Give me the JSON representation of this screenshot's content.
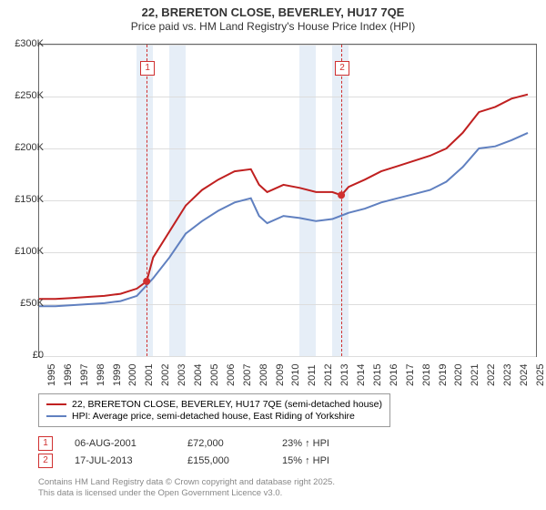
{
  "title_line1": "22, BRERETON CLOSE, BEVERLEY, HU17 7QE",
  "title_line2": "Price paid vs. HM Land Registry's House Price Index (HPI)",
  "chart": {
    "type": "line",
    "background_color": "#ffffff",
    "grid_color": "#dddddd",
    "axis_color": "#666666",
    "shade_color": "#e6eef7",
    "xlim": [
      1995,
      2025.5
    ],
    "ylim": [
      0,
      300000
    ],
    "ytick_step": 50000,
    "y_ticks": [
      "£0",
      "£50K",
      "£100K",
      "£150K",
      "£200K",
      "£250K",
      "£300K"
    ],
    "x_ticks": [
      1995,
      1996,
      1997,
      1998,
      1999,
      2000,
      2001,
      2002,
      2003,
      2004,
      2005,
      2006,
      2007,
      2008,
      2009,
      2010,
      2011,
      2012,
      2013,
      2014,
      2015,
      2016,
      2017,
      2018,
      2019,
      2020,
      2021,
      2022,
      2023,
      2024,
      2025
    ],
    "shade_bands": [
      [
        2001,
        2002
      ],
      [
        2003,
        2004
      ],
      [
        2011,
        2012
      ],
      [
        2013,
        2014
      ]
    ],
    "series": [
      {
        "name": "price_paid",
        "label": "22, BRERETON CLOSE, BEVERLEY, HU17 7QE (semi-detached house)",
        "color": "#c02020",
        "width": 2,
        "x": [
          1995,
          1996,
          1997,
          1998,
          1999,
          2000,
          2001,
          2001.6,
          2002,
          2003,
          2004,
          2005,
          2006,
          2007,
          2008,
          2008.5,
          2009,
          2010,
          2011,
          2012,
          2013,
          2013.55,
          2014,
          2015,
          2016,
          2017,
          2018,
          2019,
          2020,
          2021,
          2022,
          2023,
          2024,
          2025
        ],
        "y": [
          55000,
          55000,
          56000,
          57000,
          58000,
          60000,
          65000,
          72000,
          95000,
          120000,
          145000,
          160000,
          170000,
          178000,
          180000,
          165000,
          158000,
          165000,
          162000,
          158000,
          158000,
          155000,
          163000,
          170000,
          178000,
          183000,
          188000,
          193000,
          200000,
          215000,
          235000,
          240000,
          248000,
          252000
        ]
      },
      {
        "name": "hpi",
        "label": "HPI: Average price, semi-detached house, East Riding of Yorkshire",
        "color": "#6080c0",
        "width": 2,
        "x": [
          1995,
          1996,
          1997,
          1998,
          1999,
          2000,
          2001,
          2002,
          2003,
          2004,
          2005,
          2006,
          2007,
          2008,
          2008.5,
          2009,
          2010,
          2011,
          2012,
          2013,
          2014,
          2015,
          2016,
          2017,
          2018,
          2019,
          2020,
          2021,
          2022,
          2023,
          2024,
          2025
        ],
        "y": [
          48000,
          48000,
          49000,
          50000,
          51000,
          53000,
          58000,
          75000,
          95000,
          118000,
          130000,
          140000,
          148000,
          152000,
          135000,
          128000,
          135000,
          133000,
          130000,
          132000,
          138000,
          142000,
          148000,
          152000,
          156000,
          160000,
          168000,
          182000,
          200000,
          202000,
          208000,
          215000
        ]
      }
    ],
    "sale_points": [
      {
        "x": 2001.6,
        "y": 72000
      },
      {
        "x": 2013.55,
        "y": 155000
      }
    ],
    "markers_dashed": [
      {
        "id": "1",
        "x": 2001.6
      },
      {
        "id": "2",
        "x": 2013.55
      }
    ]
  },
  "events": [
    {
      "id": "1",
      "date": "06-AUG-2001",
      "price": "£72,000",
      "delta": "23% ↑ HPI"
    },
    {
      "id": "2",
      "date": "17-JUL-2013",
      "price": "£155,000",
      "delta": "15% ↑ HPI"
    }
  ],
  "footer_line1": "Contains HM Land Registry data © Crown copyright and database right 2025.",
  "footer_line2": "This data is licensed under the Open Government Licence v3.0."
}
